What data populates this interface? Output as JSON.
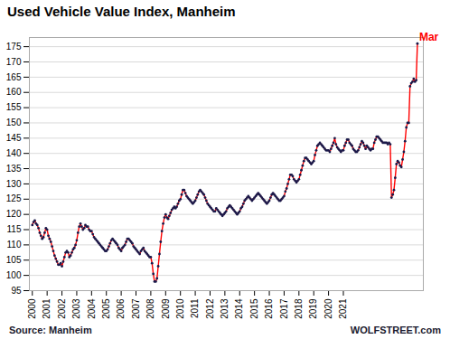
{
  "chart_data": {
    "type": "line",
    "title": "Used Vehicle Value Index, Manheim",
    "source": "Source: Manheim",
    "credit": "WOLFSTREET.com",
    "annotations": [
      {
        "text": "Mar",
        "x": 2026,
        "y": 176.0,
        "color": "#ff0000"
      }
    ],
    "xlim": [
      1999.8,
      2026.4
    ],
    "xticks": [
      2000,
      2001,
      2002,
      2003,
      2004,
      2005,
      2006,
      2007,
      2008,
      2009,
      2010,
      2011,
      2012,
      2013,
      2014,
      2015,
      2016,
      2017,
      2018,
      2019,
      2020,
      2021
    ],
    "ylim": [
      95,
      178
    ],
    "yticks": [
      95,
      100,
      105,
      110,
      115,
      120,
      125,
      130,
      135,
      140,
      145,
      150,
      155,
      160,
      165,
      170,
      175
    ],
    "grid": true,
    "x": [
      2000,
      2000.0833333333,
      2000.1666666667,
      2000.25,
      2000.3333333333,
      2000.4166666667,
      2000.5,
      2000.5833333333,
      2000.6666666667,
      2000.75,
      2000.8333333333,
      2000.9166666667,
      2001,
      2001.0833333333,
      2001.1666666667,
      2001.25,
      2001.3333333333,
      2001.4166666667,
      2001.5,
      2001.5833333333,
      2001.6666666667,
      2001.75,
      2001.8333333333,
      2001.9166666667,
      2002,
      2002.0833333333,
      2002.1666666667,
      2002.25,
      2002.3333333333,
      2002.4166666667,
      2002.5,
      2002.5833333333,
      2002.6666666667,
      2002.75,
      2002.8333333333,
      2002.9166666667,
      2003,
      2003.0833333333,
      2003.1666666667,
      2003.25,
      2003.3333333333,
      2003.4166666667,
      2003.5,
      2003.5833333333,
      2003.6666666667,
      2003.75,
      2003.8333333333,
      2003.9166666667,
      2004,
      2004.0833333333,
      2004.1666666667,
      2004.25,
      2004.3333333333,
      2004.4166666667,
      2004.5,
      2004.5833333333,
      2004.6666666667,
      2004.75,
      2004.8333333333,
      2004.9166666667,
      2005,
      2005.0833333333,
      2005.1666666667,
      2005.25,
      2005.3333333333,
      2005.4166666667,
      2005.5,
      2005.5833333333,
      2005.6666666667,
      2005.75,
      2005.8333333333,
      2005.9166666667,
      2006,
      2006.0833333333,
      2006.1666666667,
      2006.25,
      2006.3333333333,
      2006.4166666667,
      2006.5,
      2006.5833333333,
      2006.6666666667,
      2006.75,
      2006.8333333333,
      2006.9166666667,
      2007,
      2007.0833333333,
      2007.1666666667,
      2007.25,
      2007.3333333333,
      2007.4166666667,
      2007.5,
      2007.5833333333,
      2007.6666666667,
      2007.75,
      2007.8333333333,
      2007.9166666667,
      2008,
      2008.0833333333,
      2008.1666666667,
      2008.25,
      2008.3333333333,
      2008.4166666667,
      2008.5,
      2008.5833333333,
      2008.6666666667,
      2008.75,
      2008.8333333333,
      2008.9166666667,
      2009,
      2009.0833333333,
      2009.1666666667,
      2009.25,
      2009.3333333333,
      2009.4166666667,
      2009.5,
      2009.5833333333,
      2009.6666666667,
      2009.75,
      2009.8333333333,
      2009.9166666667,
      2010,
      2010.0833333333,
      2010.1666666667,
      2010.25,
      2010.3333333333,
      2010.4166666667,
      2010.5,
      2010.5833333333,
      2010.6666666667,
      2010.75,
      2010.8333333333,
      2010.9166666667,
      2011,
      2011.0833333333,
      2011.1666666667,
      2011.25,
      2011.3333333333,
      2011.4166666667,
      2011.5,
      2011.5833333333,
      2011.6666666667,
      2011.75,
      2011.8333333333,
      2011.9166666667,
      2012,
      2012.0833333333,
      2012.1666666667,
      2012.25,
      2012.3333333333,
      2012.4166666667,
      2012.5,
      2012.5833333333,
      2012.6666666667,
      2012.75,
      2012.8333333333,
      2012.9166666667,
      2013,
      2013.0833333333,
      2013.1666666667,
      2013.25,
      2013.3333333333,
      2013.4166666667,
      2013.5,
      2013.5833333333,
      2013.6666666667,
      2013.75,
      2013.8333333333,
      2013.9166666667,
      2014,
      2014.0833333333,
      2014.1666666667,
      2014.25,
      2014.3333333333,
      2014.4166666667,
      2014.5,
      2014.5833333333,
      2014.6666666667,
      2014.75,
      2014.8333333333,
      2014.9166666667,
      2015,
      2015.0833333333,
      2015.1666666667,
      2015.25,
      2015.3333333333,
      2015.4166666667,
      2015.5,
      2015.5833333333,
      2015.6666666667,
      2015.75,
      2015.8333333333,
      2015.9166666667,
      2016,
      2016.0833333333,
      2016.1666666667,
      2016.25,
      2016.3333333333,
      2016.4166666667,
      2016.5,
      2016.5833333333,
      2016.6666666667,
      2016.75,
      2016.8333333333,
      2016.9166666667,
      2017,
      2017.0833333333,
      2017.1666666667,
      2017.25,
      2017.3333333333,
      2017.4166666667,
      2017.5,
      2017.5833333333,
      2017.6666666667,
      2017.75,
      2017.8333333333,
      2017.9166666667,
      2018,
      2018.0833333333,
      2018.1666666667,
      2018.25,
      2018.3333333333,
      2018.4166666667,
      2018.5,
      2018.5833333333,
      2018.6666666667,
      2018.75,
      2018.8333333333,
      2018.9166666667,
      2019,
      2019.0833333333,
      2019.1666666667,
      2019.25,
      2019.3333333333,
      2019.4166666667,
      2019.5,
      2019.5833333333,
      2019.6666666667,
      2019.75,
      2019.8333333333,
      2019.9166666667,
      2020,
      2020.0833333333,
      2020.1666666667,
      2020.25,
      2020.3333333333,
      2020.4166666667,
      2020.5,
      2020.5833333333,
      2020.6666666667,
      2020.75,
      2020.8333333333,
      2020.9166666667,
      2021,
      2021.0833333333,
      2021.1666666667,
      2021.25,
      2021.3333333333,
      2021.4166666667,
      2021.5,
      2021.5833333333,
      2021.6666666667,
      2021.75,
      2021.8333333333,
      2021.9166666667,
      2022,
      2022.0833333333,
      2022.1666666667,
      2022.25,
      2022.3333333333,
      2022.4166666667,
      2022.5,
      2022.5833333333,
      2022.6666666667,
      2022.75,
      2022.8333333333,
      2022.9166666667,
      2023,
      2023.0833333333,
      2023.1666666667,
      2023.25,
      2023.3333333333,
      2023.4166666667,
      2023.5,
      2023.5833333333,
      2023.6666666667,
      2023.75,
      2023.8333333333,
      2023.9166666667,
      2024,
      2024.0833333333,
      2024.1666666667,
      2024.25,
      2024.3333333333,
      2024.4166666667,
      2024.5,
      2024.5833333333,
      2024.6666666667,
      2024.75,
      2024.8333333333,
      2024.9166666667,
      2025,
      2025.0833333333,
      2025.1666666667,
      2025.25,
      2025.3333333333,
      2025.4166666667,
      2025.5,
      2025.5833333333,
      2025.6666666667,
      2025.75,
      2025.8333333333,
      2025.9166666667,
      2026
    ],
    "series": [
      {
        "color": "#ff0000",
        "marker": "circle",
        "marker_color": "#1a1a4a",
        "values": [
          116.5,
          117.5,
          118.0,
          117.0,
          116.5,
          115.5,
          114.0,
          113.0,
          112.0,
          112.5,
          114.0,
          115.5,
          115.0,
          113.0,
          112.0,
          111.0,
          109.5,
          108.0,
          106.5,
          105.5,
          104.5,
          103.5,
          103.5,
          104.0,
          103.0,
          104.5,
          106.0,
          107.5,
          108.0,
          107.5,
          106.0,
          106.5,
          107.5,
          108.5,
          109.0,
          110.0,
          111.5,
          114.0,
          116.0,
          117.0,
          116.0,
          115.0,
          115.5,
          116.5,
          116.0,
          116.0,
          115.0,
          114.5,
          114.5,
          113.5,
          112.5,
          112.0,
          111.5,
          111.0,
          110.5,
          110.0,
          109.5,
          109.0,
          108.5,
          108.0,
          108.0,
          108.5,
          109.5,
          110.5,
          111.5,
          112.0,
          111.5,
          111.0,
          110.5,
          110.0,
          109.0,
          108.5,
          108.0,
          109.0,
          109.5,
          110.0,
          111.0,
          112.0,
          112.0,
          111.5,
          111.0,
          110.5,
          109.5,
          109.0,
          108.5,
          108.0,
          107.5,
          107.0,
          108.0,
          108.5,
          109.0,
          108.0,
          107.5,
          107.0,
          106.5,
          106.0,
          106.0,
          104.0,
          100.5,
          98.0,
          98.0,
          99.0,
          103.0,
          107.0,
          111.0,
          114.5,
          117.0,
          119.0,
          120.0,
          119.0,
          118.5,
          119.5,
          120.5,
          121.5,
          122.0,
          122.5,
          122.0,
          122.5,
          123.5,
          124.5,
          125.0,
          126.5,
          128.0,
          128.0,
          127.0,
          126.0,
          125.5,
          125.0,
          124.5,
          124.0,
          123.5,
          124.0,
          124.5,
          125.5,
          126.5,
          127.5,
          128.0,
          127.5,
          127.0,
          126.5,
          125.5,
          124.5,
          123.5,
          123.0,
          122.5,
          122.0,
          121.5,
          121.0,
          121.0,
          122.0,
          121.5,
          121.0,
          120.5,
          120.0,
          119.5,
          120.0,
          120.5,
          121.0,
          122.0,
          122.5,
          123.0,
          122.5,
          122.0,
          121.5,
          121.0,
          120.5,
          120.0,
          120.5,
          121.0,
          122.0,
          122.5,
          123.5,
          124.5,
          125.0,
          125.5,
          126.0,
          125.5,
          125.0,
          124.5,
          125.0,
          125.5,
          126.0,
          126.5,
          127.0,
          126.5,
          126.0,
          125.5,
          125.0,
          124.5,
          124.0,
          123.5,
          124.0,
          124.5,
          125.5,
          126.5,
          127.0,
          126.5,
          126.0,
          125.5,
          125.0,
          124.5,
          124.5,
          125.0,
          125.5,
          126.0,
          127.5,
          128.5,
          130.0,
          131.5,
          133.0,
          133.0,
          132.5,
          131.5,
          131.0,
          130.5,
          131.0,
          131.5,
          133.0,
          134.5,
          136.0,
          137.5,
          138.5,
          138.5,
          138.0,
          137.5,
          137.0,
          136.5,
          137.0,
          137.5,
          139.5,
          141.0,
          142.5,
          143.0,
          143.5,
          143.0,
          142.5,
          142.0,
          141.5,
          141.0,
          141.0,
          141.0,
          140.5,
          141.5,
          142.5,
          143.5,
          145.0,
          143.0,
          142.0,
          141.5,
          141.0,
          140.5,
          141.0,
          141.0,
          142.5,
          143.5,
          144.5,
          144.5,
          143.5,
          143.0,
          142.5,
          141.5,
          141.0,
          140.5,
          140.5,
          141.0,
          142.0,
          143.0,
          144.0,
          143.5,
          142.5,
          141.5,
          142.5,
          142.0,
          141.5,
          141.0,
          141.5,
          141.5,
          143.5,
          144.5,
          145.5,
          145.5,
          145.0,
          144.5,
          144.0,
          143.5,
          143.5,
          143.5,
          143.5,
          143.0,
          143.5,
          143.0,
          125.5,
          126.5,
          128.0,
          132.0,
          136.5,
          137.5,
          137.0,
          136.0,
          135.5,
          138.0,
          140.5,
          144.0,
          148.5,
          150.0,
          150.0,
          162.0,
          163.0,
          163.5,
          164.5,
          163.5,
          164.0,
          176.0
        ]
      }
    ]
  }
}
